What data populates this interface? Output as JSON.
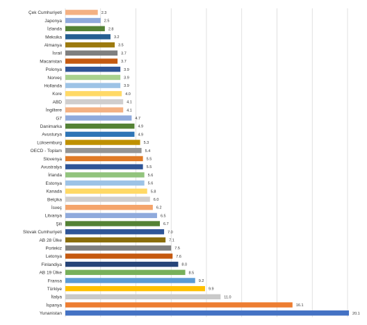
{
  "chart_data": {
    "type": "bar",
    "orientation": "horizontal",
    "title": "",
    "xlabel": "",
    "ylabel": "",
    "xlim": [
      0,
      20
    ],
    "grid": true,
    "legend": "none",
    "categories": [
      "Çek Cumhuriyeti",
      "Japonya",
      "İzlanda",
      "Meksika",
      "Almanya",
      "İsrail",
      "Macaristan",
      "Polonya",
      "Norveç",
      "Hollanda",
      "Kore",
      "ABD",
      "İngiltere",
      "G7",
      "Danimarka",
      "Avusturya",
      "Lüksemburg",
      "OECD - Toplam",
      "Slovenya",
      "Avustralya",
      "İrlanda",
      "Estonya",
      "Kanada",
      "Belçika",
      "İsveç",
      "Litvanya",
      "Şili",
      "Slovak Cumhuriyeti",
      "AB 28 Ülke",
      "Portekiz",
      "Letonya",
      "Finlandiya",
      "AB 19 Ülke",
      "Fransa",
      "Türkiye",
      "İtalya",
      "İspanya",
      "Yunanistan"
    ],
    "values": [
      2.3,
      2.5,
      2.8,
      3.2,
      3.5,
      3.7,
      3.7,
      3.9,
      3.9,
      3.9,
      4.0,
      4.1,
      4.1,
      4.7,
      4.9,
      4.9,
      5.3,
      5.4,
      5.5,
      5.5,
      5.6,
      5.6,
      5.8,
      6.0,
      6.2,
      6.5,
      6.7,
      7.0,
      7.1,
      7.5,
      7.6,
      8.0,
      8.5,
      9.2,
      9.9,
      11.0,
      16.1,
      20.1
    ],
    "value_labels": [
      "2.3",
      "2.5",
      "2.8",
      "3.2",
      "3.5",
      "3.7",
      "3.7",
      "3.9",
      "3.9",
      "3.9",
      "4.0",
      "4.1",
      "4.1",
      "4.7",
      "4.9",
      "4.9",
      "5.3",
      "5.4",
      "5.5",
      "5.5",
      "5.6",
      "5.6",
      "5.8",
      "6.0",
      "6.2",
      "6.5",
      "6.7",
      "7.0",
      "7.1",
      "7.5",
      "7.6",
      "8.0",
      "8.5",
      "9.2",
      "9.9",
      "11.0",
      "16.1",
      "20.1"
    ],
    "colors": [
      "#f4b183",
      "#8faadc",
      "#548235",
      "#255e91",
      "#9c7a0e",
      "#7f7f7f",
      "#c55a11",
      "#2f5597",
      "#a9d18e",
      "#9dc3e6",
      "#ffd966",
      "#d0cece",
      "#f4b183",
      "#8faadc",
      "#548235",
      "#2e75b6",
      "#bf9000",
      "#949494",
      "#e07b27",
      "#2f5597",
      "#92c47d",
      "#9dc3e6",
      "#ffd966",
      "#d0cece",
      "#f4a46b",
      "#8faadc",
      "#548235",
      "#2f5597",
      "#8a6d0b",
      "#7f7f7f",
      "#c55a11",
      "#264478",
      "#77b05a",
      "#5b9bd5",
      "#ffc000",
      "#c9c9c9",
      "#ed7d31",
      "#4472c4"
    ]
  }
}
